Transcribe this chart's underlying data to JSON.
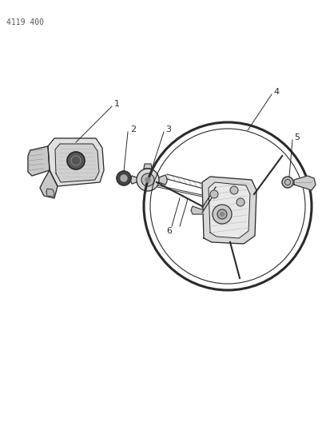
{
  "title": "4119 400",
  "background_color": "#ffffff",
  "line_color": "#2a2a2a",
  "label_color": "#2a2a2a",
  "figsize": [
    4.08,
    5.33
  ],
  "dpi": 100
}
